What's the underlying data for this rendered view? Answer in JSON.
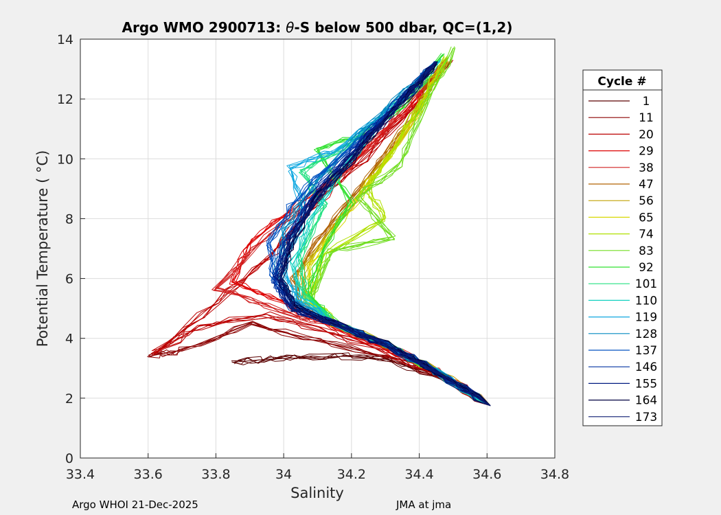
{
  "chart_data": {
    "type": "line",
    "title_prefix": "Argo WMO 2900713: ",
    "title_theta": "θ",
    "title_suffix": "-S below 500 dbar,  QC=(1,2)",
    "xlabel": "Salinity",
    "ylabel": "Potential Temperature ( °C)",
    "xlim": [
      33.4,
      34.8
    ],
    "ylim": [
      0,
      14
    ],
    "xticks": [
      33.4,
      33.6,
      33.8,
      34,
      34.2,
      34.4,
      34.6,
      34.8
    ],
    "xtick_labels": [
      "33.4",
      "33.6",
      "33.8",
      "34",
      "34.2",
      "34.4",
      "34.6",
      "34.8"
    ],
    "yticks": [
      0,
      2,
      4,
      6,
      8,
      10,
      12,
      14
    ],
    "ytick_labels": [
      "0",
      "2",
      "4",
      "6",
      "8",
      "10",
      "12",
      "14"
    ],
    "grid": true,
    "legend_title": "Cycle #",
    "legend_position": "right",
    "series": [
      {
        "name": "1",
        "color": "#5a0000"
      },
      {
        "name": "11",
        "color": "#8b0000"
      },
      {
        "name": "20",
        "color": "#bb0000"
      },
      {
        "name": "29",
        "color": "#dd0000"
      },
      {
        "name": "38",
        "color": "#d02020"
      },
      {
        "name": "47",
        "color": "#b06000"
      },
      {
        "name": "56",
        "color": "#c0a000"
      },
      {
        "name": "65",
        "color": "#d8d800"
      },
      {
        "name": "74",
        "color": "#b0e000"
      },
      {
        "name": "83",
        "color": "#70dd20"
      },
      {
        "name": "92",
        "color": "#30e030"
      },
      {
        "name": "101",
        "color": "#20e080"
      },
      {
        "name": "110",
        "color": "#10d0c0"
      },
      {
        "name": "119",
        "color": "#10a8e0"
      },
      {
        "name": "128",
        "color": "#0088c0"
      },
      {
        "name": "137",
        "color": "#0050c0"
      },
      {
        "name": "146",
        "color": "#0030a0"
      },
      {
        "name": "155",
        "color": "#001a80"
      },
      {
        "name": "164",
        "color": "#000040"
      },
      {
        "name": "173",
        "color": "#0a1a70"
      }
    ],
    "profile_curves": [
      {
        "color": "#5a0000",
        "s": [
          34.61,
          34.45,
          34.3,
          34.18,
          34.05,
          33.95,
          33.85
        ],
        "t": [
          1.75,
          2.8,
          3.3,
          3.4,
          3.35,
          3.3,
          3.2
        ]
      },
      {
        "color": "#8b0000",
        "s": [
          34.61,
          34.45,
          34.3,
          34.1,
          33.9,
          33.7,
          33.6
        ],
        "t": [
          1.75,
          2.8,
          3.4,
          3.9,
          4.5,
          3.6,
          3.4
        ]
      },
      {
        "color": "#bb0000",
        "s": [
          34.61,
          34.45,
          34.3,
          34.1,
          33.95,
          33.75,
          33.62,
          33.8,
          33.95,
          34.05,
          34.2,
          34.35,
          34.5
        ],
        "t": [
          1.75,
          2.8,
          3.6,
          4.3,
          4.8,
          4.4,
          3.5,
          5.2,
          6.6,
          8.0,
          9.6,
          11.3,
          13.3
        ]
      },
      {
        "color": "#dd0000",
        "s": [
          34.61,
          34.45,
          34.3,
          34.1,
          34.0,
          33.85,
          33.9,
          34.05,
          34.2,
          34.35,
          34.48
        ],
        "t": [
          1.75,
          2.9,
          3.7,
          4.6,
          5.2,
          5.9,
          7.2,
          8.5,
          9.8,
          11.5,
          13.2
        ]
      },
      {
        "color": "#d02020",
        "s": [
          34.61,
          34.45,
          34.3,
          34.12,
          34.0,
          33.8,
          33.95,
          34.1,
          34.22,
          34.36,
          34.48
        ],
        "t": [
          1.75,
          2.9,
          3.8,
          4.5,
          4.9,
          5.7,
          7.4,
          8.8,
          10.0,
          11.7,
          13.3
        ]
      },
      {
        "color": "#b06000",
        "s": [
          34.61,
          34.45,
          34.3,
          34.15,
          34.05,
          34.03,
          34.12,
          34.25,
          34.38,
          34.47
        ],
        "t": [
          1.75,
          2.9,
          3.8,
          4.5,
          5.0,
          6.0,
          7.6,
          9.4,
          11.4,
          13.2
        ]
      },
      {
        "color": "#c0a000",
        "s": [
          34.61,
          34.45,
          34.3,
          34.15,
          34.06,
          34.05,
          34.15,
          34.27,
          34.39,
          34.47
        ],
        "t": [
          1.75,
          2.9,
          3.8,
          4.5,
          5.2,
          6.2,
          7.8,
          9.5,
          11.5,
          13.2
        ]
      },
      {
        "color": "#d8d800",
        "s": [
          34.61,
          34.45,
          34.3,
          34.15,
          34.07,
          34.08,
          34.17,
          34.28,
          34.4,
          34.48
        ],
        "t": [
          1.75,
          2.9,
          3.8,
          4.5,
          5.3,
          6.4,
          8.0,
          9.6,
          11.6,
          13.3
        ]
      },
      {
        "color": "#b0e000",
        "s": [
          34.61,
          34.45,
          34.3,
          34.15,
          34.08,
          34.12,
          34.3,
          34.25,
          34.32,
          34.4,
          34.48
        ],
        "t": [
          1.75,
          2.9,
          3.8,
          4.5,
          5.4,
          6.8,
          8.0,
          9.0,
          10.2,
          11.8,
          13.4
        ]
      },
      {
        "color": "#70dd20",
        "s": [
          34.61,
          34.45,
          34.3,
          34.15,
          34.08,
          34.14,
          34.32,
          34.22,
          34.34,
          34.42,
          34.5
        ],
        "t": [
          1.75,
          2.9,
          3.8,
          4.5,
          5.3,
          6.9,
          7.4,
          8.7,
          9.8,
          11.8,
          13.7
        ]
      },
      {
        "color": "#30e030",
        "s": [
          34.61,
          34.45,
          34.3,
          34.15,
          34.07,
          34.12,
          34.2,
          34.1,
          34.25,
          34.35,
          34.47
        ],
        "t": [
          1.75,
          2.9,
          3.8,
          4.5,
          5.5,
          7.0,
          8.6,
          10.3,
          10.9,
          11.7,
          13.5
        ]
      },
      {
        "color": "#20e080",
        "s": [
          34.61,
          34.45,
          34.3,
          34.15,
          34.06,
          34.05,
          34.12,
          34.05,
          34.18,
          34.32,
          34.39,
          34.46
        ],
        "t": [
          1.75,
          2.9,
          3.8,
          4.5,
          5.5,
          6.8,
          8.4,
          9.6,
          10.4,
          11.6,
          12.4,
          13.3
        ]
      },
      {
        "color": "#10d0c0",
        "s": [
          34.61,
          34.45,
          34.3,
          34.15,
          34.05,
          34.03,
          34.08,
          34.18,
          34.32,
          34.46
        ],
        "t": [
          1.75,
          2.9,
          3.8,
          4.5,
          5.4,
          6.5,
          8.0,
          9.8,
          11.6,
          13.3
        ]
      },
      {
        "color": "#10a8e0",
        "s": [
          34.61,
          34.45,
          34.3,
          34.15,
          34.04,
          34.0,
          34.06,
          34.02,
          34.15,
          34.3,
          34.45
        ],
        "t": [
          1.75,
          2.9,
          3.8,
          4.5,
          5.3,
          6.4,
          8.2,
          9.7,
          10.3,
          11.5,
          13.2
        ]
      },
      {
        "color": "#0088c0",
        "s": [
          34.61,
          34.45,
          34.3,
          34.15,
          34.03,
          33.98,
          34.0,
          34.08,
          34.2,
          34.33,
          34.45
        ],
        "t": [
          1.75,
          2.9,
          3.8,
          4.5,
          5.2,
          6.2,
          7.6,
          9.0,
          10.5,
          12.0,
          13.2
        ]
      },
      {
        "color": "#0050c0",
        "s": [
          34.61,
          34.45,
          34.3,
          34.15,
          34.03,
          33.97,
          33.96,
          34.02,
          34.12,
          34.25,
          34.38,
          34.45
        ],
        "t": [
          1.75,
          2.9,
          3.8,
          4.5,
          5.1,
          6.0,
          7.2,
          8.4,
          9.6,
          10.9,
          12.3,
          13.2
        ]
      },
      {
        "color": "#0030a0",
        "s": [
          34.61,
          34.45,
          34.3,
          34.15,
          34.02,
          33.97,
          34.0,
          34.08,
          34.2,
          34.33,
          34.45
        ],
        "t": [
          1.75,
          2.9,
          3.8,
          4.5,
          5.0,
          5.9,
          7.2,
          8.7,
          10.3,
          11.8,
          13.2
        ]
      },
      {
        "color": "#001a80",
        "s": [
          34.61,
          34.45,
          34.3,
          34.15,
          34.02,
          33.98,
          34.02,
          34.1,
          34.22,
          34.35,
          34.45
        ],
        "t": [
          1.75,
          2.9,
          3.8,
          4.5,
          5.0,
          6.0,
          7.4,
          8.8,
          10.4,
          12.0,
          13.2
        ]
      },
      {
        "color": "#000040",
        "s": [
          34.61,
          34.45,
          34.3,
          34.15,
          34.03,
          33.99,
          34.03,
          34.11,
          34.23,
          34.36,
          34.45
        ],
        "t": [
          1.75,
          2.9,
          3.8,
          4.5,
          5.1,
          6.0,
          7.4,
          8.8,
          10.4,
          12.0,
          13.2
        ]
      },
      {
        "color": "#0a1a70",
        "s": [
          34.61,
          34.45,
          34.3,
          34.15,
          34.03,
          33.99,
          34.02,
          34.1,
          34.22,
          34.35,
          34.45
        ],
        "t": [
          1.75,
          2.9,
          3.8,
          4.5,
          5.0,
          6.0,
          7.3,
          8.7,
          10.3,
          11.9,
          13.2
        ]
      }
    ]
  },
  "footer": {
    "left": "Argo WHOI 21-Dec-2025",
    "right": "JMA at jma"
  }
}
